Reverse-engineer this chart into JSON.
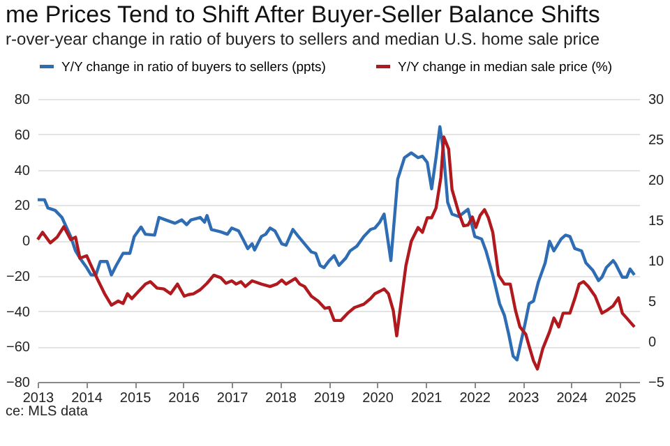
{
  "chart_data": {
    "type": "line",
    "title": "me Prices Tend to Shift After Buyer-Seller Balance Shifts",
    "subtitle": "r-over-year change in ratio of buyers to sellers and median U.S. home sale price",
    "annotations": [
      "ce: MLS data"
    ],
    "xlim": [
      2013,
      2025.4
    ],
    "xticks": [
      2013,
      2014,
      2015,
      2016,
      2017,
      2018,
      2019,
      2020,
      2021,
      2022,
      2023,
      2024,
      2025
    ],
    "ylim": [
      -80,
      80
    ],
    "yticks": [
      -80,
      -60,
      -40,
      -20,
      0,
      20,
      40,
      60,
      80
    ],
    "y2lim": [
      -5,
      30
    ],
    "y2ticks": [
      -5,
      0,
      5,
      10,
      15,
      20,
      25,
      30
    ],
    "grid": "y",
    "legend": "top",
    "marker": "none",
    "line_style": "solid",
    "series": [
      {
        "name": "Y/Y change in ratio of buyers to sellers (ppts)",
        "color": "#2e6db4",
        "axis": "y",
        "x": [
          2013.0,
          2013.14,
          2013.21,
          2013.36,
          2013.5,
          2013.59,
          2013.68,
          2013.78,
          2013.87,
          2014.01,
          2014.1,
          2014.2,
          2014.29,
          2014.43,
          2014.52,
          2014.62,
          2014.76,
          2014.9,
          2014.99,
          2015.13,
          2015.22,
          2015.41,
          2015.5,
          2015.64,
          2015.83,
          2015.97,
          2016.07,
          2016.16,
          2016.35,
          2016.44,
          2016.49,
          2016.58,
          2016.77,
          2016.91,
          2017.0,
          2017.14,
          2017.23,
          2017.33,
          2017.42,
          2017.47,
          2017.61,
          2017.7,
          2017.79,
          2017.89,
          2018.03,
          2018.12,
          2018.26,
          2018.36,
          2018.5,
          2018.64,
          2018.73,
          2018.82,
          2018.9,
          2019.01,
          2019.11,
          2019.21,
          2019.35,
          2019.44,
          2019.58,
          2019.72,
          2019.86,
          2019.95,
          2020.05,
          2020.14,
          2020.28,
          2020.42,
          2020.56,
          2020.7,
          2020.84,
          2020.93,
          2021.03,
          2021.12,
          2021.21,
          2021.29,
          2021.36,
          2021.45,
          2021.54,
          2021.68,
          2021.78,
          2021.87,
          2022.01,
          2022.15,
          2022.24,
          2022.38,
          2022.52,
          2022.62,
          2022.71,
          2022.8,
          2022.88,
          2022.94,
          2023.04,
          2023.13,
          2023.22,
          2023.32,
          2023.46,
          2023.55,
          2023.64,
          2023.79,
          2023.88,
          2023.97,
          2024.07,
          2024.21,
          2024.3,
          2024.44,
          2024.56,
          2024.63,
          2024.72,
          2024.86,
          2024.91,
          2025.05,
          2025.14,
          2025.21,
          2025.3
        ],
        "values": [
          23,
          23,
          18.4,
          17,
          13,
          7.6,
          2.2,
          -5.9,
          -10,
          -15.4,
          -19.5,
          -19.5,
          -11.9,
          -11.9,
          -19.5,
          -14.1,
          -7.3,
          -7.3,
          2.2,
          7.6,
          3.5,
          3,
          13,
          11.6,
          9.7,
          11.6,
          8.9,
          11.6,
          13,
          10.3,
          14.1,
          6.2,
          4.9,
          3.5,
          7,
          5.4,
          0.8,
          -4.6,
          -1.9,
          -5.4,
          2.2,
          3.5,
          7,
          5.4,
          -1.9,
          -2.7,
          6.2,
          2.7,
          -1.9,
          -6.5,
          -7.3,
          -14.1,
          -15.4,
          -11.4,
          -8.6,
          -14.1,
          -10,
          -5.9,
          -3.2,
          2.2,
          6.2,
          7,
          10.3,
          14.9,
          -11.4,
          34.6,
          46.8,
          49.5,
          46.8,
          47.6,
          44.1,
          29.2,
          46.8,
          64.3,
          51.4,
          21.6,
          14.9,
          13.5,
          15.7,
          17.6,
          2.2,
          0.8,
          -5.9,
          -19.5,
          -35.7,
          -42.4,
          -53.2,
          -65.4,
          -67.6,
          -60,
          -47.8,
          -35.7,
          -34.3,
          -23.5,
          -12.7,
          -0.5,
          -5.9,
          0.8,
          3,
          2.2,
          -4.6,
          -5.9,
          -12.7,
          -16.8,
          -22.7,
          -20.8,
          -15.4,
          -11.4,
          -13.2,
          -20.8,
          -20.8,
          -16.2,
          -19.5
        ]
      },
      {
        "name": "Y/Y change in median sale price (%)",
        "color": "#b0191e",
        "axis": "y2",
        "x": [
          2013.0,
          2013.1,
          2013.26,
          2013.4,
          2013.54,
          2013.68,
          2013.78,
          2013.87,
          2014.01,
          2014.1,
          2014.24,
          2014.38,
          2014.52,
          2014.66,
          2014.76,
          2014.85,
          2014.94,
          2015.08,
          2015.22,
          2015.32,
          2015.46,
          2015.6,
          2015.74,
          2015.88,
          2016.02,
          2016.11,
          2016.21,
          2016.35,
          2016.49,
          2016.63,
          2016.77,
          2016.88,
          2017.0,
          2017.09,
          2017.19,
          2017.28,
          2017.42,
          2017.61,
          2017.79,
          2017.93,
          2018.03,
          2018.12,
          2018.31,
          2018.4,
          2018.5,
          2018.64,
          2018.78,
          2018.92,
          2019.01,
          2019.11,
          2019.25,
          2019.39,
          2019.53,
          2019.72,
          2019.86,
          2019.95,
          2020.05,
          2020.14,
          2020.23,
          2020.33,
          2020.4,
          2020.5,
          2020.59,
          2020.7,
          2020.84,
          2020.93,
          2021.03,
          2021.12,
          2021.21,
          2021.31,
          2021.37,
          2021.47,
          2021.54,
          2021.68,
          2021.78,
          2021.87,
          2021.96,
          2022.03,
          2022.12,
          2022.21,
          2022.29,
          2022.38,
          2022.5,
          2022.62,
          2022.74,
          2022.85,
          2022.94,
          2023.06,
          2023.13,
          2023.22,
          2023.3,
          2023.41,
          2023.55,
          2023.64,
          2023.74,
          2023.83,
          2023.97,
          2024.07,
          2024.16,
          2024.25,
          2024.35,
          2024.49,
          2024.63,
          2024.72,
          2024.86,
          2024.97,
          2025.05,
          2025.14,
          2025.3
        ],
        "values": [
          12.6,
          13.5,
          12.2,
          12.9,
          14.2,
          12.6,
          12.9,
          10.3,
          10.6,
          9.4,
          7.6,
          5.9,
          4.5,
          5,
          4.7,
          5.9,
          5.3,
          6.2,
          7.1,
          7.4,
          6.6,
          6.5,
          5.9,
          7.1,
          5.6,
          5.8,
          5.9,
          6.4,
          7.2,
          8.2,
          7.9,
          7.2,
          7.5,
          7.1,
          7.4,
          6.8,
          7.5,
          7.1,
          6.8,
          7.1,
          7.6,
          7.1,
          7.8,
          7.1,
          6.8,
          5.6,
          5,
          4.1,
          4.2,
          2.6,
          2.6,
          3.5,
          4.2,
          4.6,
          5.3,
          5.9,
          6.2,
          6.5,
          5.9,
          3.8,
          0.7,
          5.3,
          9.4,
          12.4,
          14.1,
          13.5,
          15.3,
          15.3,
          16.5,
          20.3,
          25.3,
          23.8,
          18.8,
          15.9,
          14.3,
          14.4,
          15.4,
          14.1,
          15.6,
          16.3,
          15.3,
          13.5,
          8.2,
          7.1,
          7.1,
          3.8,
          1.8,
          0.9,
          -0.6,
          -2.4,
          -3.4,
          -0.9,
          1.2,
          2.9,
          1.8,
          3.5,
          3.5,
          5.3,
          7.1,
          7.4,
          6.8,
          5.6,
          3.5,
          3.8,
          4.4,
          5.4,
          3.5,
          2.9,
          1.8
        ]
      }
    ]
  }
}
